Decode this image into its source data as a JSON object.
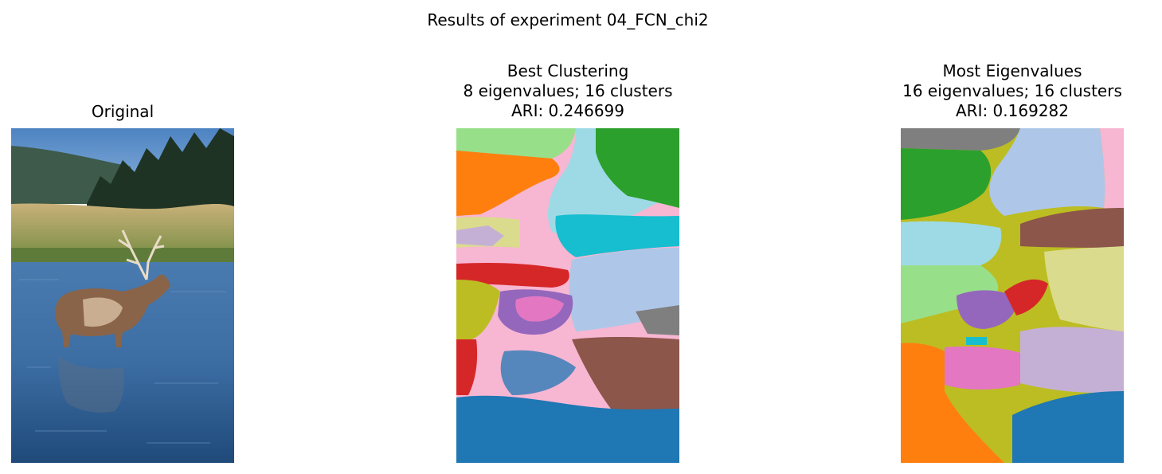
{
  "figure": {
    "suptitle": "Results of experiment 04_FCN_chi2"
  },
  "panels": [
    {
      "title_lines": [
        "Original"
      ],
      "image": "photo-elk-in-river"
    },
    {
      "title_lines": [
        "Best Clustering",
        "8 eigenvalues; 16 clusters",
        "ARI: 0.246699"
      ],
      "image": "segmentation-map",
      "eigenvalues": 8,
      "clusters": 16,
      "ari": 0.246699
    },
    {
      "title_lines": [
        "Most Eigenvalues",
        "16 eigenvalues; 16 clusters",
        "ARI: 0.169282"
      ],
      "image": "segmentation-map",
      "eigenvalues": 16,
      "clusters": 16,
      "ari": 0.169282
    }
  ],
  "colors": {
    "tab_blue": "#1f77b4",
    "tab_orange": "#ff7f0e",
    "tab_green": "#2ca02c",
    "tab_red": "#d62728",
    "tab_purple": "#9467bd",
    "tab_brown": "#8c564b",
    "tab_pink": "#e377c2",
    "tab_gray": "#7f7f7f",
    "tab_olive": "#bcbd22",
    "tab_cyan": "#17becf",
    "light_blue": "#aec7e8",
    "light_green": "#98df8a",
    "light_pink": "#f7b6d2",
    "light_purple": "#c5b0d5",
    "light_olive": "#dbdb8d",
    "light_cyan": "#9edae5"
  }
}
